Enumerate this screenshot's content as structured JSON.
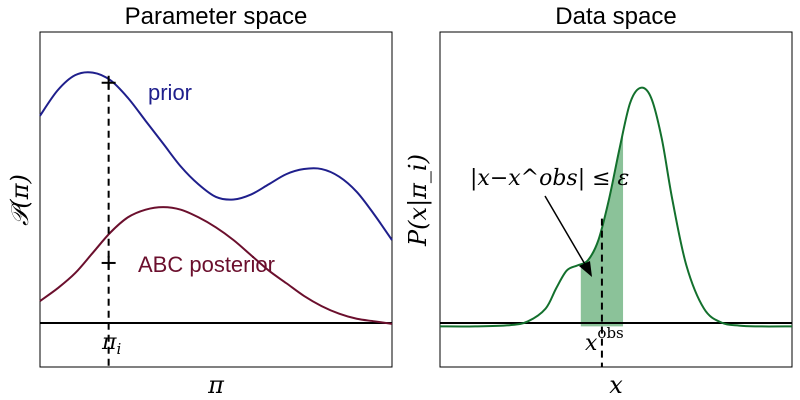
{
  "chart_data": [
    {
      "type": "line",
      "title": "Parameter space",
      "xlabel": "π",
      "ylabel": "𝒫(π)",
      "xlim": [
        0,
        1
      ],
      "ylim": [
        -0.16,
        1.16
      ],
      "grid": false,
      "tick_labels": [
        "π",
        "i"
      ],
      "marked_x": 0.195,
      "baseline_y": 0,
      "series": [
        {
          "name": "prior",
          "color": "#1f1f8c",
          "x": [
            0,
            0.05,
            0.1,
            0.15,
            0.2,
            0.25,
            0.3,
            0.35,
            0.4,
            0.45,
            0.5,
            0.55,
            0.6,
            0.65,
            0.7,
            0.75,
            0.8,
            0.85,
            0.9,
            0.95,
            1.0
          ],
          "y": [
            0.83,
            0.93,
            0.99,
            1.0,
            0.97,
            0.9,
            0.81,
            0.72,
            0.63,
            0.56,
            0.51,
            0.5,
            0.52,
            0.56,
            0.6,
            0.62,
            0.62,
            0.59,
            0.53,
            0.44,
            0.34
          ],
          "marker_y": 0.96
        },
        {
          "name": "ABC posterior",
          "color": "#6b0f2d",
          "x": [
            0,
            0.05,
            0.1,
            0.15,
            0.2,
            0.25,
            0.3,
            0.35,
            0.4,
            0.45,
            0.5,
            0.55,
            0.6,
            0.65,
            0.7,
            0.75,
            0.8,
            0.85,
            0.9,
            0.95,
            1.0
          ],
          "y": [
            0.1,
            0.15,
            0.21,
            0.29,
            0.37,
            0.43,
            0.46,
            0.47,
            0.46,
            0.43,
            0.39,
            0.34,
            0.28,
            0.22,
            0.17,
            0.12,
            0.08,
            0.05,
            0.03,
            0.02,
            0.01
          ],
          "marker_y": 0.25
        }
      ]
    },
    {
      "type": "area",
      "title": "Data space",
      "xlabel": "x",
      "ylabel": "P(x|π_i)",
      "xlim": [
        0,
        1
      ],
      "ylim": [
        -0.16,
        1.16
      ],
      "grid": false,
      "tick_labels": [
        "x",
        "obs"
      ],
      "marked_x": 0.46,
      "shaded_range": [
        0.4,
        0.52
      ],
      "shade_color": "#5aa86e",
      "annotation": "|x−x^obs| ≤ ε",
      "series": [
        {
          "name": "P(x|π_i)",
          "color": "#13702d",
          "x": [
            0,
            0.1,
            0.2,
            0.25,
            0.3,
            0.33,
            0.36,
            0.39,
            0.42,
            0.45,
            0.48,
            0.51,
            0.54,
            0.57,
            0.6,
            0.63,
            0.66,
            0.7,
            0.75,
            0.8,
            0.85,
            0.9,
            1.0
          ],
          "y": [
            0,
            0,
            0.005,
            0.02,
            0.07,
            0.15,
            0.22,
            0.24,
            0.26,
            0.34,
            0.5,
            0.7,
            0.88,
            0.94,
            0.9,
            0.74,
            0.5,
            0.24,
            0.07,
            0.015,
            0.003,
            0,
            0
          ]
        }
      ]
    }
  ]
}
